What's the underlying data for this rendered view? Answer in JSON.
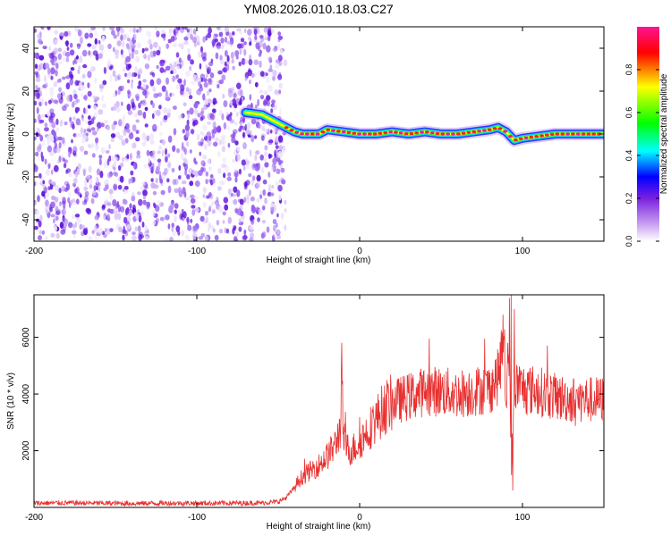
{
  "figure": {
    "title": "YM08.2026.010.18.03.C27"
  },
  "chart_data": [
    {
      "type": "heatmap",
      "xlabel": "Height of straight line (km)",
      "ylabel": "Frequency (Hz)",
      "xlim": [
        -200,
        150
      ],
      "ylim": [
        -50,
        50
      ],
      "xticks": [
        -200,
        -100,
        0,
        100
      ],
      "yticks": [
        -40,
        -20,
        0,
        20,
        40
      ],
      "grid": false,
      "noise_region_x": [
        -200,
        -50
      ],
      "ridge": [
        {
          "x": -70,
          "f": 10
        },
        {
          "x": -60,
          "f": 9
        },
        {
          "x": -50,
          "f": 5
        },
        {
          "x": -45,
          "f": 3
        },
        {
          "x": -40,
          "f": 1
        },
        {
          "x": -35,
          "f": 0
        },
        {
          "x": -30,
          "f": 0
        },
        {
          "x": -25,
          "f": 0
        },
        {
          "x": -20,
          "f": 2
        },
        {
          "x": -10,
          "f": 1
        },
        {
          "x": 0,
          "f": 0
        },
        {
          "x": 10,
          "f": 0
        },
        {
          "x": 20,
          "f": 1
        },
        {
          "x": 30,
          "f": 0
        },
        {
          "x": 40,
          "f": 1
        },
        {
          "x": 50,
          "f": 0
        },
        {
          "x": 60,
          "f": 0
        },
        {
          "x": 70,
          "f": 1
        },
        {
          "x": 80,
          "f": 2
        },
        {
          "x": 85,
          "f": 3
        },
        {
          "x": 90,
          "f": 1
        },
        {
          "x": 95,
          "f": -3
        },
        {
          "x": 100,
          "f": -2
        },
        {
          "x": 110,
          "f": -1
        },
        {
          "x": 120,
          "f": 0
        },
        {
          "x": 130,
          "f": 0
        },
        {
          "x": 140,
          "f": 0
        },
        {
          "x": 150,
          "f": 0
        }
      ],
      "colorbar": {
        "label": "Normalized spectral amplitude",
        "range": [
          0,
          1
        ],
        "ticks": [
          0.0,
          0.2,
          0.4,
          0.6,
          0.8
        ],
        "tick_labels": [
          "0.0",
          "0.2",
          "0.4",
          "0.6",
          "0.8"
        ],
        "colormap": [
          "#ffffff",
          "#8a2be2",
          "#0000ff",
          "#00ffff",
          "#00ff00",
          "#ffff00",
          "#ff0000",
          "#ff1493"
        ]
      }
    },
    {
      "type": "line",
      "xlabel": "Height of straight line (km)",
      "ylabel": "SNR (10 * v/v)",
      "xlim": [
        -200,
        150
      ],
      "ylim": [
        0,
        7500
      ],
      "xticks": [
        -200,
        -100,
        0,
        100
      ],
      "yticks": [
        2000,
        4000,
        6000
      ],
      "grid": false,
      "series": [
        {
          "color": "#e83030",
          "x": [
            -200,
            -180,
            -160,
            -140,
            -120,
            -100,
            -80,
            -60,
            -50,
            -45,
            -40,
            -38,
            -35,
            -30,
            -25,
            -20,
            -15,
            -12,
            -11,
            -10,
            -8,
            -5,
            0,
            5,
            10,
            15,
            20,
            25,
            30,
            35,
            40,
            50,
            60,
            70,
            80,
            85,
            88,
            90,
            92,
            93,
            95,
            100,
            110,
            120,
            130,
            140,
            150
          ],
          "values": [
            150,
            160,
            150,
            140,
            150,
            150,
            150,
            160,
            200,
            350,
            700,
            900,
            1100,
            1300,
            1500,
            1800,
            2200,
            2800,
            4600,
            2500,
            2100,
            2000,
            2300,
            2700,
            3100,
            3500,
            3700,
            3800,
            3900,
            4000,
            4100,
            4100,
            4000,
            4100,
            4200,
            4600,
            5600,
            3800,
            6200,
            1000,
            4300,
            4200,
            4100,
            3900,
            3800,
            3800,
            3800
          ]
        }
      ]
    }
  ]
}
